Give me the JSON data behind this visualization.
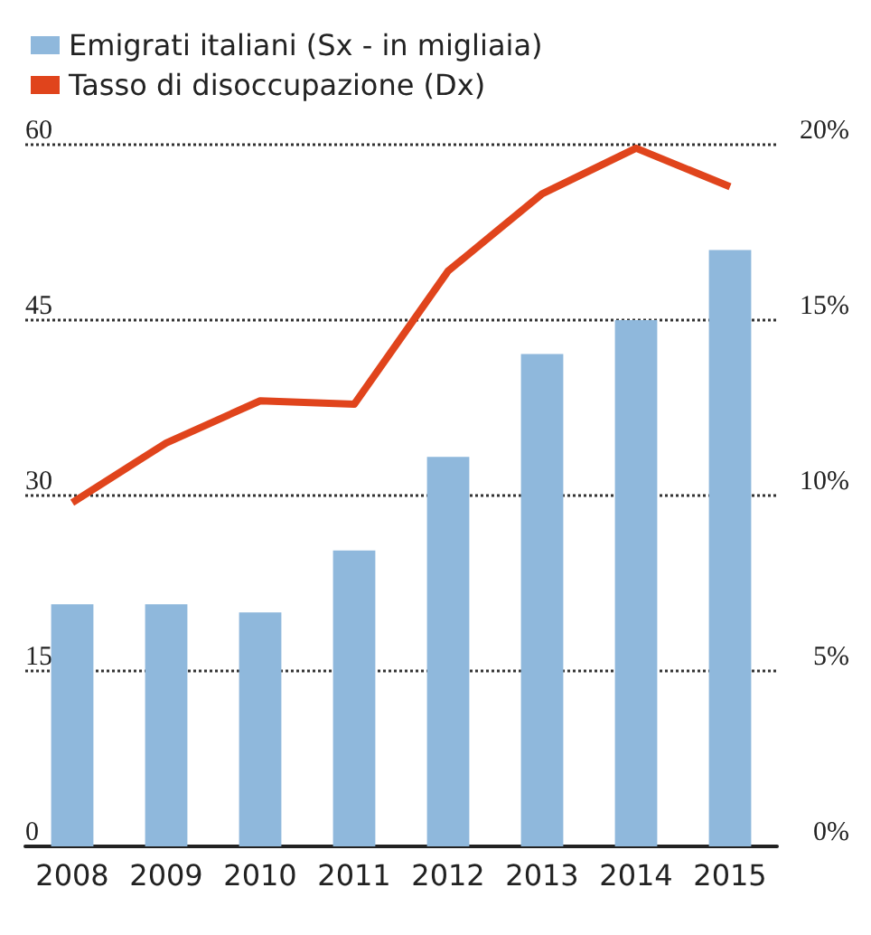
{
  "chart_data": {
    "type": "bar",
    "categories": [
      "2008",
      "2009",
      "2010",
      "2011",
      "2012",
      "2013",
      "2014",
      "2015"
    ],
    "series": [
      {
        "name": "Emigrati italiani (Sx - in migliaia)",
        "color": "#8fb8dc",
        "values": [
          20.7,
          20.7,
          20.0,
          25.3,
          33.3,
          42.1,
          45,
          51
        ]
      },
      {
        "name": "Tasso di disoccupazione (Dx)",
        "type": "line",
        "axis": "y2",
        "color": "#e0441c",
        "values": [
          9.8,
          11.5,
          12.7,
          12.6,
          16.4,
          18.6,
          19.9,
          18.8
        ]
      }
    ],
    "ylim": [
      0,
      60
    ],
    "yticks": [
      0,
      15,
      30,
      45,
      60
    ],
    "y2lim": [
      0,
      20
    ],
    "y2ticks": [
      {
        "value": 0,
        "label": "0%"
      },
      {
        "value": 5,
        "label": "5%"
      },
      {
        "value": 10,
        "label": "10%"
      },
      {
        "value": 15,
        "label": "15%"
      },
      {
        "value": 20,
        "label": "20%"
      }
    ],
    "grid": "y",
    "legend": "top left",
    "marker": "none",
    "line_style": "solid"
  }
}
